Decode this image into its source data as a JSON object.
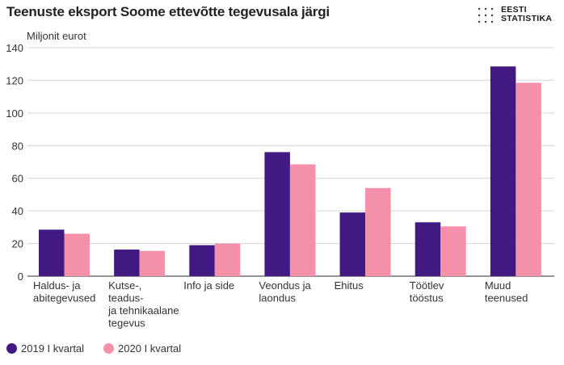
{
  "title": "Teenuste eksport Soome ettevõtte tegevusala järgi",
  "logo": {
    "line1": "EESTI",
    "line2": "STATISTIKA"
  },
  "chart_data": {
    "type": "bar",
    "ylabel": "Miljonit eurot",
    "ylim": [
      0,
      140
    ],
    "yticks": [
      0,
      20,
      40,
      60,
      80,
      100,
      120,
      140
    ],
    "grid": true,
    "legend_position": "bottom-left",
    "categories": [
      [
        "Haldus- ja",
        "abitegevused"
      ],
      [
        "Kutse-,",
        "teadus-",
        "ja tehnikaalane",
        "tegevus"
      ],
      [
        "Info ja side"
      ],
      [
        "Veondus ja",
        "laondus"
      ],
      [
        "Ehitus"
      ],
      [
        "Töötlev",
        "tööstus"
      ],
      [
        "Muud",
        "teenused"
      ]
    ],
    "series": [
      {
        "name": "2019 I kvartal",
        "color": "#421983",
        "values": [
          28.5,
          16.3,
          19,
          76,
          39,
          33,
          128.5
        ]
      },
      {
        "name": "2020 I kvartal",
        "color": "#f590ab",
        "values": [
          26,
          15.5,
          20,
          68.5,
          54,
          30.5,
          118.5
        ]
      }
    ]
  }
}
